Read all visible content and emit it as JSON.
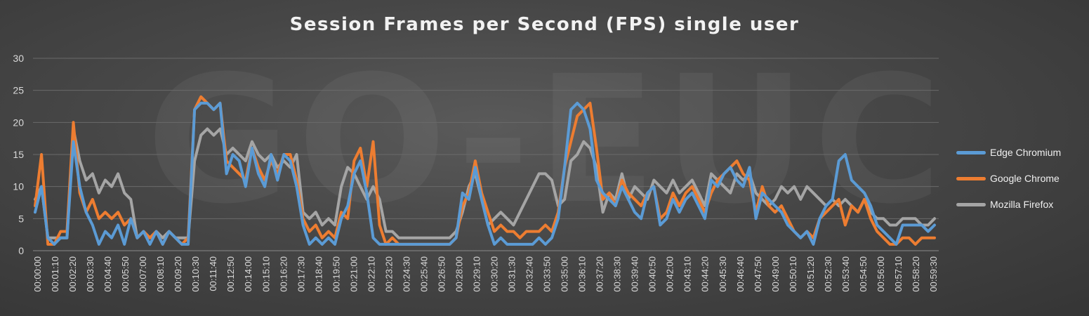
{
  "chart_data": {
    "type": "line",
    "title": "Session Frames per Second (FPS) single user",
    "watermark": "GO-EUC",
    "xlabel": "",
    "ylabel": "",
    "ylim": [
      0,
      30
    ],
    "yticks": [
      0,
      5,
      10,
      15,
      20,
      25,
      30
    ],
    "grid": true,
    "legend_position": "right",
    "x_tick_labels": [
      "00:00:00",
      "00:01:10",
      "00:02:20",
      "00:03:30",
      "00:04:40",
      "00:05:50",
      "00:07:00",
      "00:08:10",
      "00:09:20",
      "00:10:30",
      "00:11:40",
      "00:12:50",
      "00:14:00",
      "00:15:10",
      "00:16:20",
      "00:17:30",
      "00:18:40",
      "00:19:50",
      "00:21:00",
      "00:22:10",
      "00:23:20",
      "00:24:30",
      "00:25:40",
      "00:26:50",
      "00:28:00",
      "00:29:10",
      "00:30:20",
      "00:31:30",
      "00:32:40",
      "00:33:50",
      "00:35:00",
      "00:36:10",
      "00:37:20",
      "00:38:30",
      "00:39:40",
      "00:40:50",
      "00:42:00",
      "00:43:10",
      "00:44:20",
      "00:45:30",
      "00:46:40",
      "00:47:50",
      "00:49:00",
      "00:50:10",
      "00:51:20",
      "00:52:30",
      "00:53:40",
      "00:54:50",
      "00:56:00",
      "00:57:10",
      "00:58:20",
      "00:59:30"
    ],
    "x_start_seconds": 0,
    "x_step_seconds": 70,
    "series": [
      {
        "name": "Edge Chromium",
        "color": "#5b9bd5",
        "values": [
          6,
          10,
          2,
          1,
          2,
          2,
          17,
          10,
          6,
          4,
          1,
          3,
          2,
          4,
          1,
          5,
          2,
          3,
          1,
          3,
          1,
          3,
          2,
          1,
          1,
          22,
          23,
          23,
          22,
          23,
          12,
          15,
          14,
          10,
          16,
          12,
          10,
          15,
          11,
          15,
          14,
          10,
          4,
          1,
          2,
          1,
          2,
          1,
          5,
          7,
          12,
          14,
          9,
          2,
          1,
          1,
          1,
          1,
          1,
          1,
          1,
          1,
          1,
          1,
          1,
          1,
          2,
          9,
          8,
          13,
          8,
          4,
          1,
          2,
          1,
          1,
          1,
          1,
          1,
          2,
          1,
          2,
          5,
          13,
          22,
          23,
          22,
          19,
          11,
          9,
          8,
          7,
          10,
          8,
          6,
          5,
          9,
          10,
          4,
          5,
          8,
          6,
          8,
          9,
          7,
          5,
          11,
          10,
          12,
          13,
          11,
          10,
          13,
          5,
          9,
          8,
          7,
          6,
          4,
          3,
          2,
          3,
          1,
          5,
          7,
          8,
          14,
          15,
          11,
          10,
          9,
          7,
          4,
          3,
          2,
          1,
          4,
          4,
          4,
          4,
          3,
          4
        ]
      },
      {
        "name": "Google Chrome",
        "color": "#ed7d31",
        "values": [
          7,
          15,
          1,
          1,
          3,
          3,
          20,
          9,
          6,
          8,
          5,
          6,
          5,
          6,
          4,
          5,
          2,
          3,
          2,
          3,
          1,
          3,
          2,
          1,
          2,
          22,
          24,
          23,
          22,
          23,
          14,
          13,
          12,
          11,
          16,
          13,
          11,
          14,
          12,
          15,
          15,
          11,
          5,
          3,
          4,
          2,
          3,
          2,
          6,
          5,
          14,
          16,
          10,
          17,
          4,
          1,
          2,
          1,
          1,
          1,
          1,
          1,
          1,
          1,
          1,
          1,
          2,
          7,
          9,
          14,
          9,
          6,
          3,
          4,
          3,
          3,
          2,
          3,
          3,
          3,
          4,
          3,
          6,
          13,
          17,
          21,
          22,
          23,
          16,
          8,
          9,
          7,
          11,
          9,
          8,
          7,
          9,
          10,
          5,
          6,
          9,
          7,
          9,
          10,
          8,
          6,
          9,
          11,
          12,
          13,
          14,
          12,
          11,
          6,
          10,
          7,
          6,
          7,
          5,
          3,
          2,
          3,
          2,
          5,
          6,
          7,
          8,
          4,
          7,
          6,
          8,
          5,
          3,
          2,
          1,
          1,
          2,
          2,
          1,
          2,
          2,
          2
        ]
      },
      {
        "name": "Mozilla Firefox",
        "color": "#a5a5a5",
        "values": [
          8,
          10,
          2,
          2,
          2,
          2,
          19,
          14,
          11,
          12,
          9,
          11,
          10,
          12,
          9,
          8,
          2,
          3,
          2,
          3,
          2,
          3,
          2,
          2,
          2,
          14,
          18,
          19,
          18,
          19,
          15,
          16,
          15,
          14,
          17,
          15,
          14,
          15,
          13,
          14,
          13,
          15,
          6,
          5,
          6,
          4,
          5,
          4,
          10,
          13,
          12,
          10,
          8,
          10,
          8,
          3,
          3,
          2,
          2,
          2,
          2,
          2,
          2,
          2,
          2,
          2,
          3,
          6,
          10,
          12,
          8,
          4,
          5,
          6,
          5,
          4,
          6,
          8,
          10,
          12,
          12,
          11,
          7,
          8,
          14,
          15,
          17,
          16,
          13,
          6,
          9,
          8,
          12,
          8,
          10,
          9,
          8,
          11,
          10,
          9,
          11,
          9,
          10,
          11,
          9,
          7,
          12,
          11,
          10,
          9,
          12,
          11,
          12,
          9,
          8,
          7,
          8,
          10,
          9,
          10,
          8,
          10,
          9,
          8,
          7,
          8,
          7,
          8,
          7,
          6,
          8,
          6,
          5,
          5,
          4,
          4,
          5,
          5,
          5,
          4,
          4,
          5
        ]
      }
    ]
  }
}
